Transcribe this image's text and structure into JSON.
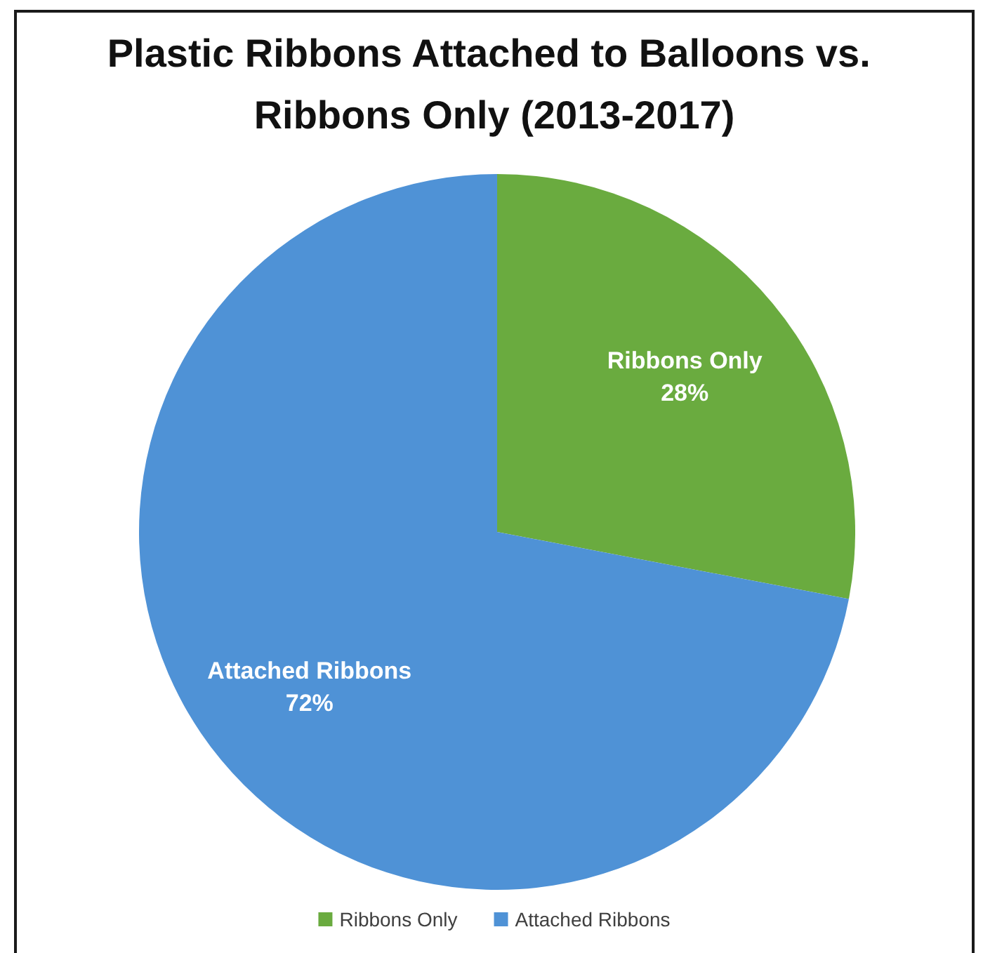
{
  "chart_data": {
    "type": "pie",
    "title": "Plastic Ribbons Attached to Balloons vs. Ribbons Only (2013-2017)",
    "categories": [
      "Ribbons Only",
      "Attached Ribbons"
    ],
    "values": [
      28,
      72
    ],
    "colors": [
      "#6aab3f",
      "#4f92d6"
    ],
    "value_labels": [
      "28%",
      "72%"
    ],
    "legend": "bottom"
  }
}
